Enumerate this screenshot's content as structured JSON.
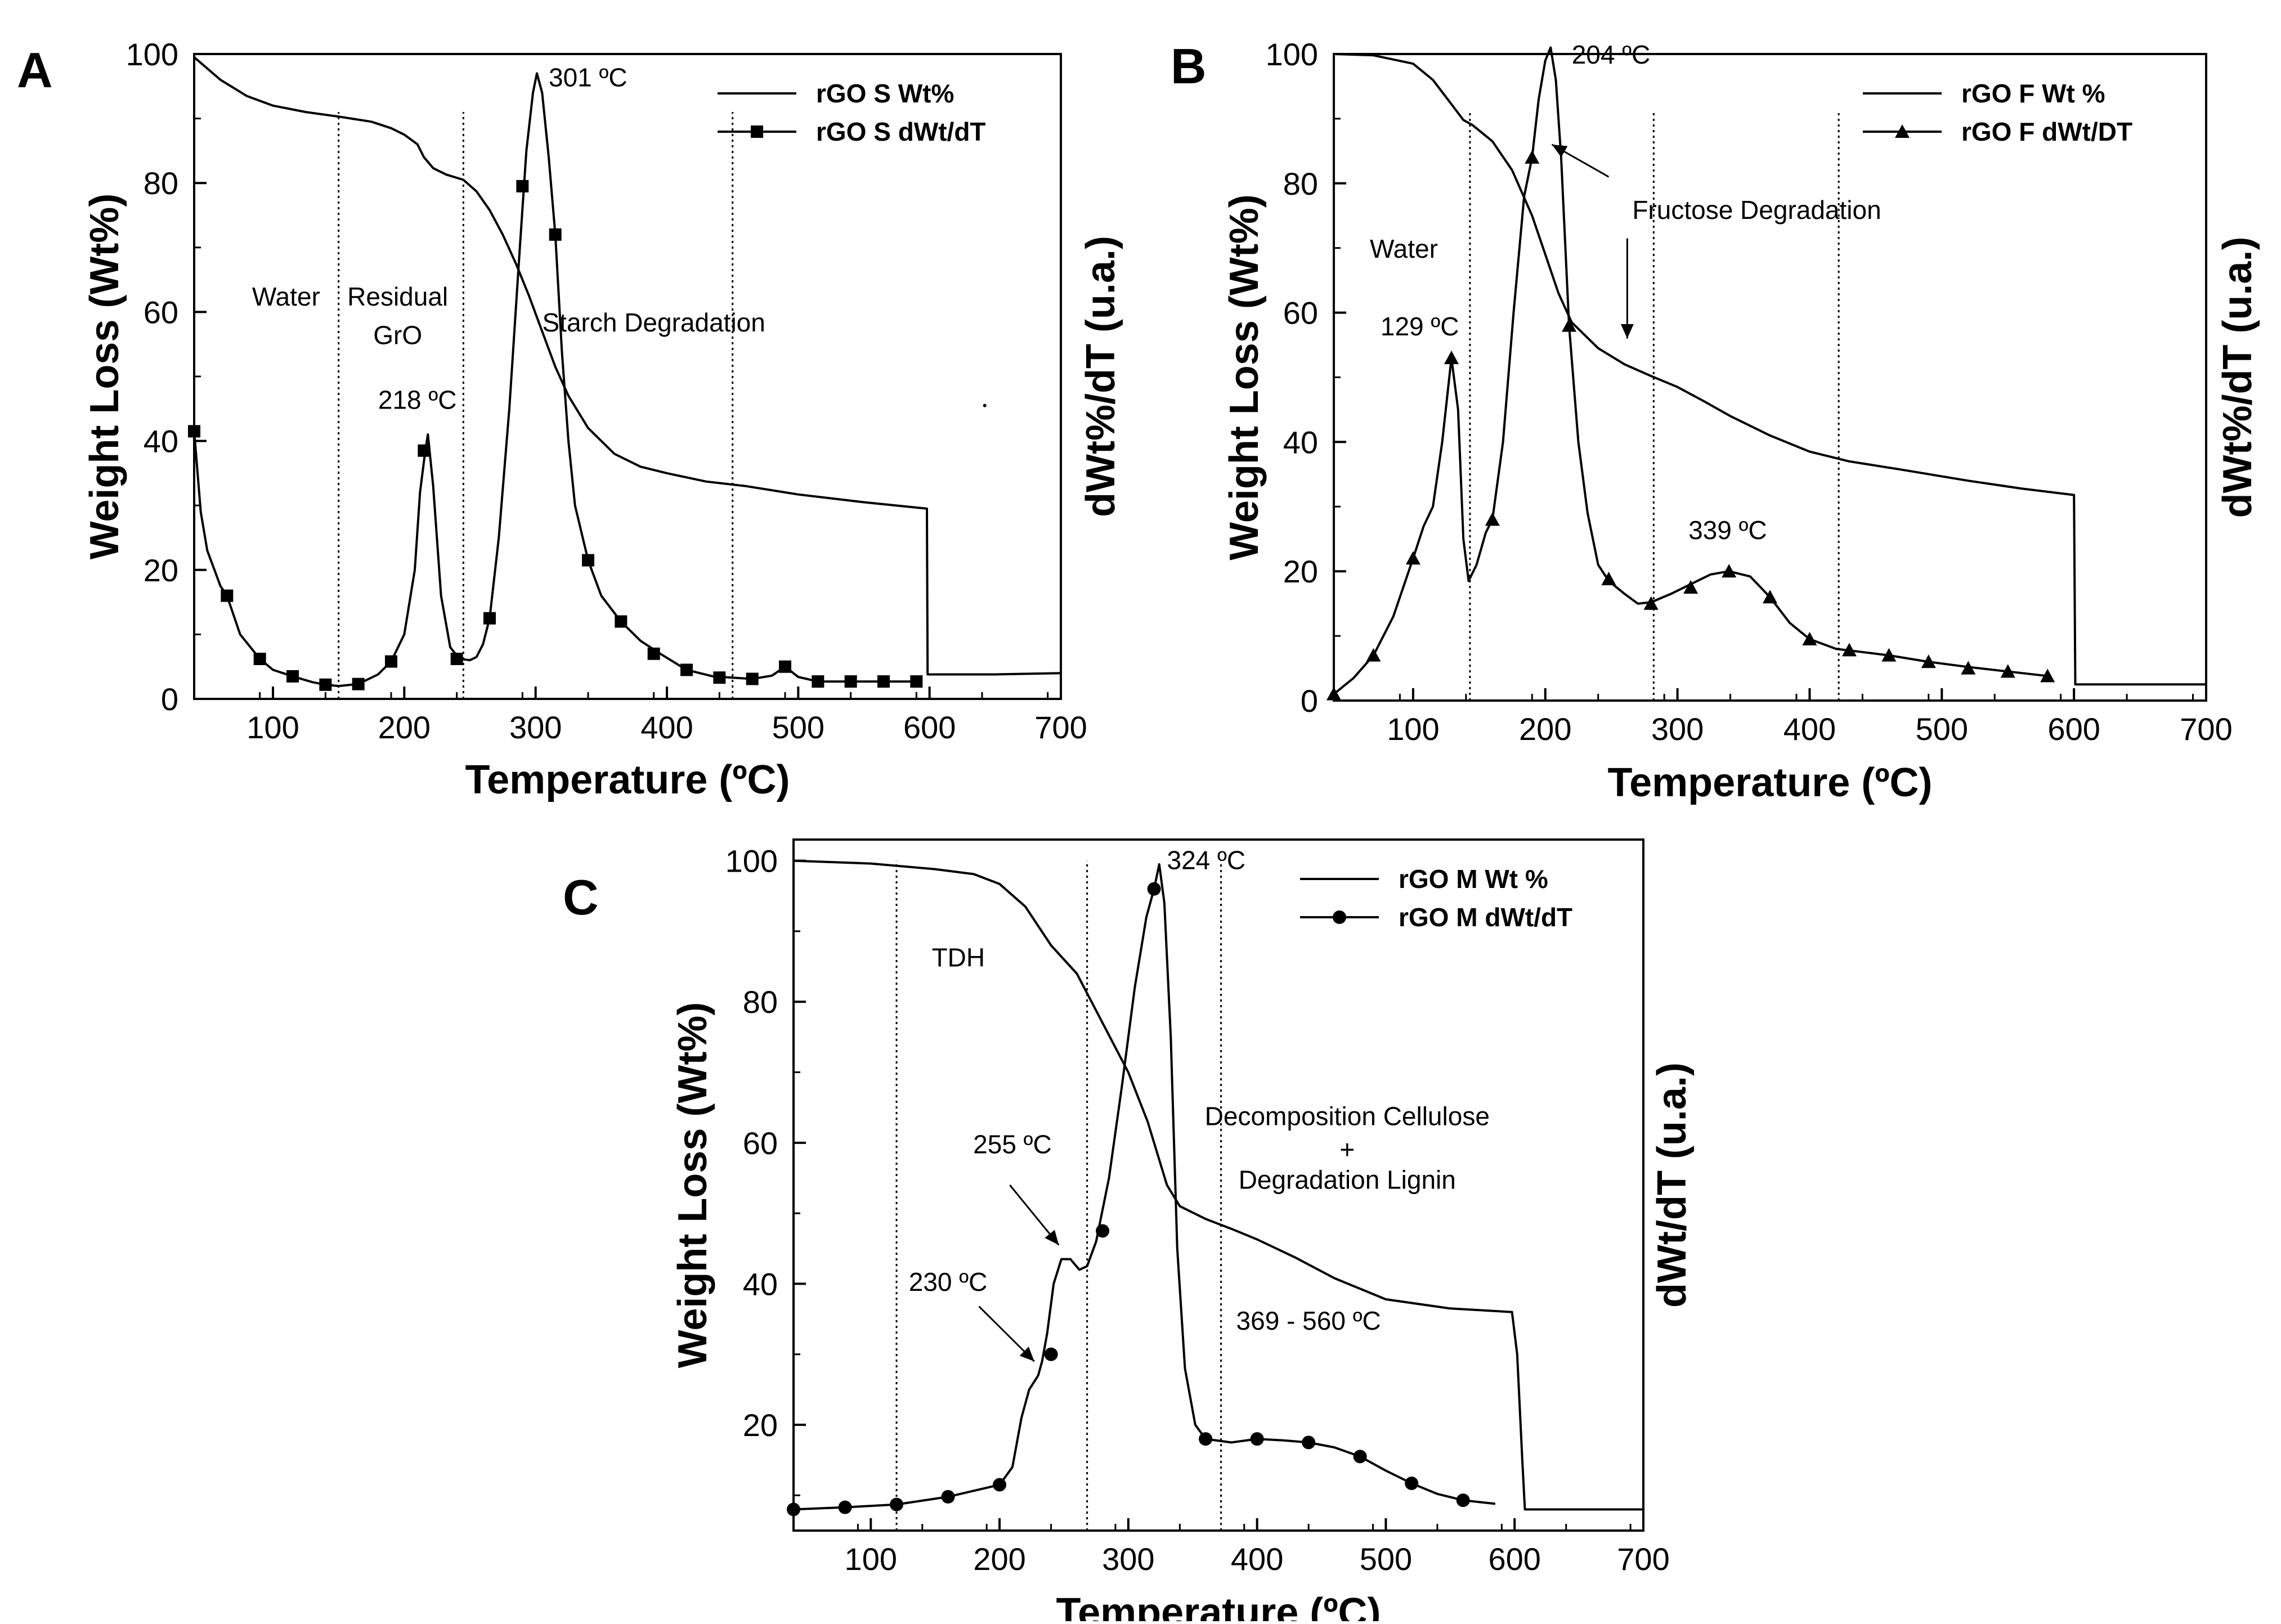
{
  "figure": {
    "description_free": true
  },
  "chart_data": [
    {
      "panel": "A",
      "type": "line",
      "xlabel": "Temperature (ºC)",
      "ylabel": "Weight Loss (Wt%)",
      "y2label": "dWt%/dT (u.a.)",
      "xlim": [
        40,
        700
      ],
      "ylim": [
        0,
        100
      ],
      "xticks": [
        100,
        200,
        300,
        400,
        500,
        600,
        700
      ],
      "yticks": [
        0,
        20,
        40,
        60,
        80,
        100
      ],
      "legend": {
        "position": "top-right",
        "entries": [
          "rGO S Wt%",
          "rGO S dWt/dT"
        ]
      },
      "series": [
        {
          "name": "rGO S Wt%",
          "marker": "none",
          "x": [
            40,
            60,
            80,
            100,
            125,
            150,
            175,
            190,
            200,
            210,
            215,
            222,
            232,
            245,
            255,
            265,
            275,
            285,
            295,
            305,
            315,
            325,
            340,
            360,
            380,
            400,
            430,
            460,
            500,
            550,
            598,
            598.5,
            601,
            650,
            700
          ],
          "y": [
            99.5,
            96,
            93.5,
            92,
            91,
            90.3,
            89.5,
            88.5,
            87.5,
            86,
            84,
            82.3,
            81.3,
            80.5,
            78.7,
            75.8,
            72,
            67.5,
            62.5,
            57,
            51.5,
            47,
            42,
            38,
            36,
            35,
            33.7,
            33,
            31.7,
            30.5,
            29.5,
            3.8,
            3.8,
            3.8,
            4
          ],
          "markers_x": [],
          "markers_y": []
        },
        {
          "name": "rGO S dWt/dT",
          "marker": "square",
          "x": [
            40,
            45,
            50,
            60,
            65,
            75,
            90,
            100,
            115,
            130,
            140,
            150,
            165,
            180,
            190,
            200,
            208,
            212,
            216,
            218,
            222,
            228,
            235,
            242,
            250,
            255,
            260,
            265,
            272,
            280,
            288,
            293,
            298,
            301,
            305,
            310,
            315,
            320,
            325,
            330,
            340,
            350,
            365,
            380,
            395,
            415,
            435,
            450,
            465,
            480,
            490,
            500,
            515,
            540,
            565,
            590
          ],
          "y": [
            41.5,
            29,
            23,
            17.5,
            16,
            10,
            6.2,
            4.5,
            3.5,
            2.6,
            2.2,
            2,
            2.3,
            3.8,
            5.8,
            10,
            20,
            32,
            38.5,
            41,
            33,
            16,
            8,
            6.2,
            6,
            6.5,
            8.5,
            12.5,
            25,
            45,
            70,
            85,
            94,
            97,
            94,
            84,
            72,
            54,
            40,
            30,
            21.5,
            16,
            12,
            9,
            7,
            4.5,
            3.5,
            3.3,
            3.1,
            3.6,
            5,
            3.4,
            2.7,
            2.7,
            2.7,
            2.7
          ],
          "markers_x": [
            40,
            65,
            90,
            115,
            140,
            165,
            190,
            215,
            240,
            265,
            290,
            315,
            340,
            365,
            390,
            415,
            440,
            465,
            490,
            515,
            540,
            565,
            590
          ],
          "markers_y": [
            41.5,
            16,
            6.2,
            3.5,
            2.2,
            2.3,
            5.8,
            38.5,
            6.2,
            12.5,
            79.5,
            72,
            21.5,
            12,
            7,
            4.5,
            3.3,
            3.1,
            5,
            2.7,
            2.7,
            2.7,
            2.7
          ]
        }
      ],
      "vlines": [
        150,
        245,
        450
      ],
      "annotations": [
        {
          "text": "Water",
          "x": 110,
          "y": 61,
          "anchor": "middle"
        },
        {
          "text": "Residual",
          "x": 195,
          "y": 61,
          "anchor": "middle"
        },
        {
          "text": "GrO",
          "x": 195,
          "y": 55,
          "anchor": "middle"
        },
        {
          "text": "Starch Degradation",
          "x": 390,
          "y": 57,
          "anchor": "middle"
        },
        {
          "text": "218 ºC",
          "x": 210,
          "y": 45,
          "anchor": "middle"
        },
        {
          "text": "301 ºC",
          "x": 310,
          "y": 95,
          "anchor": "start"
        }
      ],
      "arrows": [],
      "stray_marks": [
        [
          642,
          45.5
        ]
      ]
    },
    {
      "panel": "B",
      "type": "line",
      "xlabel": "Temperature (ºC)",
      "ylabel": "Weight Loss (Wt%)",
      "y2label": "dWt%/dT (u.a.)",
      "xlim": [
        40,
        700
      ],
      "ylim": [
        0,
        100
      ],
      "xticks": [
        100,
        200,
        300,
        400,
        500,
        600,
        700
      ],
      "yticks": [
        0,
        20,
        40,
        60,
        80,
        100
      ],
      "legend": {
        "position": "top-right",
        "entries": [
          "rGO F Wt %",
          "rGO F dWt/DT"
        ]
      },
      "series": [
        {
          "name": "rGO F Wt %",
          "marker": "none",
          "x": [
            40,
            70,
            100,
            115,
            128,
            138,
            145,
            160,
            175,
            190,
            200,
            210,
            220,
            240,
            260,
            280,
            300,
            320,
            340,
            370,
            400,
            430,
            470,
            520,
            560,
            600,
            601,
            605,
            650,
            700
          ],
          "y": [
            100,
            99.8,
            98.5,
            96,
            92.5,
            89.8,
            89,
            86.5,
            82,
            75,
            69,
            63,
            58.5,
            54.5,
            52,
            50.2,
            48.5,
            46.3,
            44,
            41,
            38.5,
            37,
            35.7,
            34,
            32.8,
            31.8,
            2.5,
            2.5,
            2.5,
            2.5
          ],
          "markers_x": [],
          "markers_y": []
        },
        {
          "name": "rGO F dWt/DT",
          "marker": "triangle",
          "x": [
            40,
            55,
            70,
            85,
            100,
            108,
            115,
            122,
            129,
            134,
            138,
            142,
            148,
            155,
            160,
            168,
            176,
            184,
            190,
            195,
            200,
            204,
            208,
            212,
            218,
            225,
            232,
            240,
            248,
            260,
            270,
            280,
            295,
            310,
            325,
            339,
            355,
            370,
            385,
            400,
            420,
            440,
            460,
            490,
            520,
            550,
            580
          ],
          "y": [
            1,
            3.5,
            7,
            13,
            22,
            27,
            30,
            40,
            53,
            45,
            25,
            18.5,
            21,
            26,
            28,
            40,
            60,
            78,
            84,
            93,
            99,
            101,
            96,
            84,
            58,
            40,
            29,
            21,
            18.5,
            16.5,
            15,
            15.2,
            16.5,
            18,
            19.5,
            20,
            19.2,
            16,
            12,
            9.5,
            8,
            7.5,
            7,
            6,
            5.2,
            4.5,
            3.8
          ],
          "markers_x": [
            40,
            70,
            100,
            129,
            160,
            190,
            218,
            248,
            280,
            310,
            339,
            370,
            400,
            430,
            460,
            490,
            520,
            550,
            580
          ],
          "markers_y": [
            1,
            7,
            22,
            53,
            28,
            84,
            58,
            18.8,
            15,
            17.5,
            20,
            16,
            9.5,
            7.8,
            7,
            6,
            5,
            4.5,
            3.8
          ]
        }
      ],
      "vlines": [
        143,
        282,
        422
      ],
      "annotations": [
        {
          "text": "Water",
          "x": 93,
          "y": 68.5,
          "anchor": "middle"
        },
        {
          "text": "Fructose Degradation",
          "x": 360,
          "y": 74.5,
          "anchor": "middle"
        },
        {
          "text": "129 ºC",
          "x": 105,
          "y": 56.5,
          "anchor": "middle"
        },
        {
          "text": "204 ºC",
          "x": 220,
          "y": 98.5,
          "anchor": "start"
        },
        {
          "text": "339 ºC",
          "x": 338,
          "y": 25,
          "anchor": "middle"
        }
      ],
      "arrows": [
        {
          "from": [
            248,
            81
          ],
          "to": [
            205,
            86
          ]
        },
        {
          "from": [
            262,
            71.5
          ],
          "to": [
            262,
            56
          ]
        }
      ],
      "stray_marks": []
    },
    {
      "panel": "C",
      "type": "line",
      "xlabel": "Temperature (ºC)",
      "ylabel": "Weight Loss (Wt%)",
      "y2label": "dWt/dT (u.a.)",
      "xlim": [
        40,
        700
      ],
      "ylim": [
        5,
        103
      ],
      "xticks": [
        100,
        200,
        300,
        400,
        500,
        600,
        700
      ],
      "yticks": [
        20,
        40,
        60,
        80,
        100
      ],
      "legend": {
        "position": "top-right",
        "entries": [
          "rGO M Wt %",
          "rGO M dWt/dT"
        ]
      },
      "series": [
        {
          "name": "rGO M Wt %",
          "marker": "none",
          "x": [
            40,
            100,
            150,
            180,
            200,
            220,
            240,
            260,
            280,
            300,
            315,
            330,
            340,
            360,
            380,
            400,
            430,
            460,
            500,
            550,
            598,
            602,
            606,
            608,
            650,
            700
          ],
          "y": [
            100,
            99.6,
            98.8,
            98.1,
            96.7,
            93.5,
            88,
            84,
            77,
            70,
            63,
            54,
            51,
            49.2,
            47.8,
            46.3,
            43.7,
            40.8,
            37.8,
            36.5,
            36,
            30,
            15,
            8,
            8,
            8
          ],
          "markers_x": [],
          "markers_y": []
        },
        {
          "name": "rGO M dWt/dT",
          "marker": "circle",
          "x": [
            40,
            80,
            120,
            160,
            200,
            210,
            217,
            223,
            230,
            233,
            237,
            242,
            248,
            255,
            262,
            268,
            275,
            285,
            295,
            305,
            314,
            320,
            324,
            328,
            333,
            338,
            344,
            352,
            360,
            380,
            400,
            420,
            440,
            460,
            480,
            500,
            520,
            540,
            560,
            585
          ],
          "y": [
            8,
            8.3,
            8.7,
            9.8,
            11.5,
            14,
            21,
            25,
            27,
            29,
            33,
            40,
            43.5,
            43.5,
            42,
            42.5,
            46,
            55,
            68,
            82,
            92,
            96,
            99.5,
            94,
            75,
            45,
            28,
            20,
            18,
            17.5,
            18,
            17.8,
            17.5,
            16.8,
            15.5,
            13.5,
            11.7,
            10.2,
            9.3,
            8.8
          ],
          "markers_x": [
            40,
            80,
            120,
            160,
            200,
            240,
            280,
            320,
            360,
            400,
            440,
            480,
            520,
            560
          ],
          "markers_y": [
            8,
            8.3,
            8.7,
            9.8,
            11.5,
            30,
            47.5,
            96,
            18,
            18,
            17.5,
            15.5,
            11.7,
            9.3
          ]
        }
      ],
      "vlines": [
        120,
        268,
        372
      ],
      "annotations": [
        {
          "text": "TDH",
          "x": 168,
          "y": 85,
          "anchor": "middle"
        },
        {
          "text": "Decomposition Cellulose",
          "x": 470,
          "y": 62.5,
          "anchor": "middle"
        },
        {
          "text": "+",
          "x": 470,
          "y": 57.8,
          "anchor": "middle"
        },
        {
          "text": "Degradation Lignin",
          "x": 470,
          "y": 53.5,
          "anchor": "middle"
        },
        {
          "text": "255 ºC",
          "x": 210,
          "y": 58.5,
          "anchor": "middle"
        },
        {
          "text": "230 ºC",
          "x": 160,
          "y": 39,
          "anchor": "middle"
        },
        {
          "text": "324 ºC",
          "x": 330,
          "y": 98.8,
          "anchor": "start"
        },
        {
          "text": "369 - 560 ºC",
          "x": 440,
          "y": 33.5,
          "anchor": "middle"
        }
      ],
      "arrows": [
        {
          "from": [
            208,
            54
          ],
          "to": [
            246,
            45.5
          ]
        },
        {
          "from": [
            184,
            36.8
          ],
          "to": [
            227,
            29
          ]
        }
      ],
      "stray_marks": []
    }
  ]
}
